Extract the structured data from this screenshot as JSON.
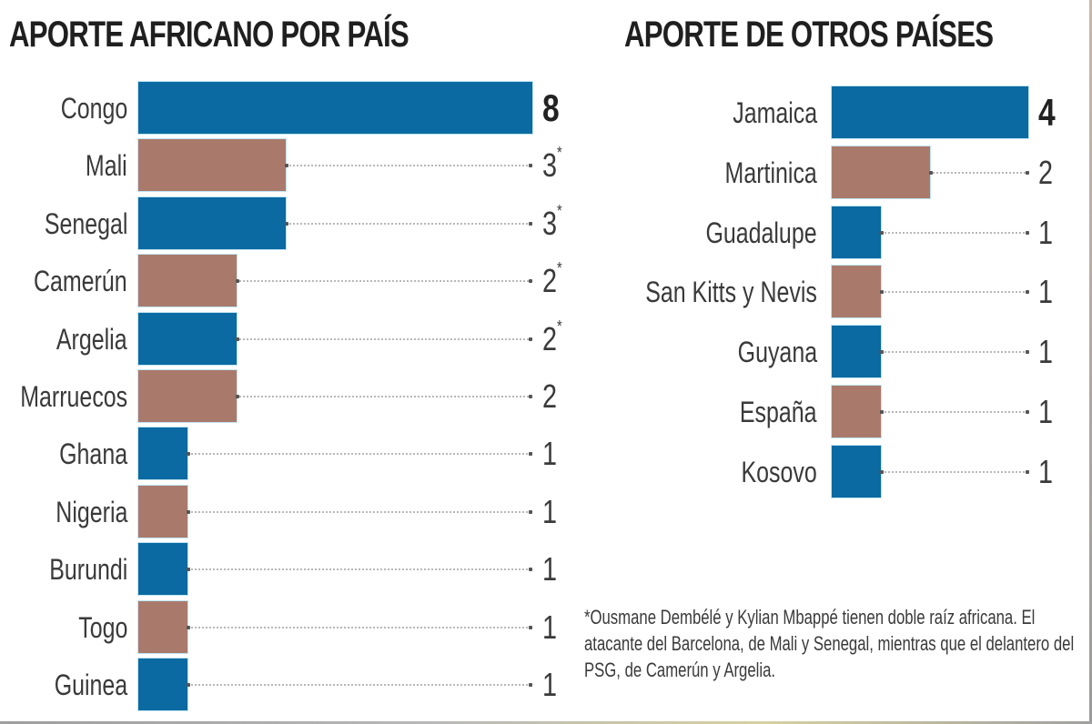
{
  "colors": {
    "blue": "#0a6aa1",
    "brown": "#a97a6b",
    "text": "#3a3a3a",
    "leader": "#b8b8b8"
  },
  "left": {
    "title": "APORTE AFRICANO POR PAÍS",
    "rows": [
      {
        "label": "Congo",
        "value": "8",
        "mark": "",
        "color": "blue"
      },
      {
        "label": "Mali",
        "value": "3",
        "mark": "*",
        "color": "brown"
      },
      {
        "label": "Senegal",
        "value": "3",
        "mark": "*",
        "color": "blue"
      },
      {
        "label": "Camerún",
        "value": "2",
        "mark": "*",
        "color": "brown"
      },
      {
        "label": "Argelia",
        "value": "2",
        "mark": "*",
        "color": "blue"
      },
      {
        "label": "Marruecos",
        "value": "2",
        "mark": "",
        "color": "brown"
      },
      {
        "label": "Ghana",
        "value": "1",
        "mark": "",
        "color": "blue"
      },
      {
        "label": "Nigeria",
        "value": "1",
        "mark": "",
        "color": "brown"
      },
      {
        "label": "Burundi",
        "value": "1",
        "mark": "",
        "color": "blue"
      },
      {
        "label": "Togo",
        "value": "1",
        "mark": "",
        "color": "brown"
      },
      {
        "label": "Guinea",
        "value": "1",
        "mark": "",
        "color": "blue"
      }
    ]
  },
  "right": {
    "title": "APORTE DE OTROS PAÍSES",
    "rows": [
      {
        "label": "Jamaica",
        "value": "4",
        "mark": "",
        "color": "blue"
      },
      {
        "label": "Martinica",
        "value": "2",
        "mark": "",
        "color": "brown"
      },
      {
        "label": "Guadalupe",
        "value": "1",
        "mark": "",
        "color": "blue"
      },
      {
        "label": "San Kitts y Nevis",
        "value": "1",
        "mark": "",
        "color": "brown"
      },
      {
        "label": "Guyana",
        "value": "1",
        "mark": "",
        "color": "blue"
      },
      {
        "label": "España",
        "value": "1",
        "mark": "",
        "color": "brown"
      },
      {
        "label": "Kosovo",
        "value": "1",
        "mark": "",
        "color": "blue"
      }
    ]
  },
  "footnote": "*Ousmane Dembélé y Kylian Mbappé tienen doble raíz africana. El atacante del Barcelona, de Mali y Senegal, mientras que el delantero del PSG, de Camerún y Argelia.",
  "chart_data": [
    {
      "type": "bar",
      "orientation": "horizontal",
      "title": "APORTE AFRICANO POR PAÍS",
      "categories": [
        "Congo",
        "Mali",
        "Senegal",
        "Camerún",
        "Argelia",
        "Marruecos",
        "Ghana",
        "Nigeria",
        "Burundi",
        "Togo",
        "Guinea"
      ],
      "values": [
        8,
        3,
        3,
        2,
        2,
        2,
        1,
        1,
        1,
        1,
        1
      ],
      "annotations": {
        "Mali": "*",
        "Senegal": "*",
        "Camerún": "*",
        "Argelia": "*"
      },
      "xlabel": "",
      "ylabel": "",
      "xlim": [
        0,
        8
      ],
      "grid": false,
      "legend": null
    },
    {
      "type": "bar",
      "orientation": "horizontal",
      "title": "APORTE DE OTROS PAÍSES",
      "categories": [
        "Jamaica",
        "Martinica",
        "Guadalupe",
        "San Kitts y Nevis",
        "Guyana",
        "España",
        "Kosovo"
      ],
      "values": [
        4,
        2,
        1,
        1,
        1,
        1,
        1
      ],
      "xlabel": "",
      "ylabel": "",
      "xlim": [
        0,
        4
      ],
      "grid": false,
      "legend": null
    }
  ]
}
